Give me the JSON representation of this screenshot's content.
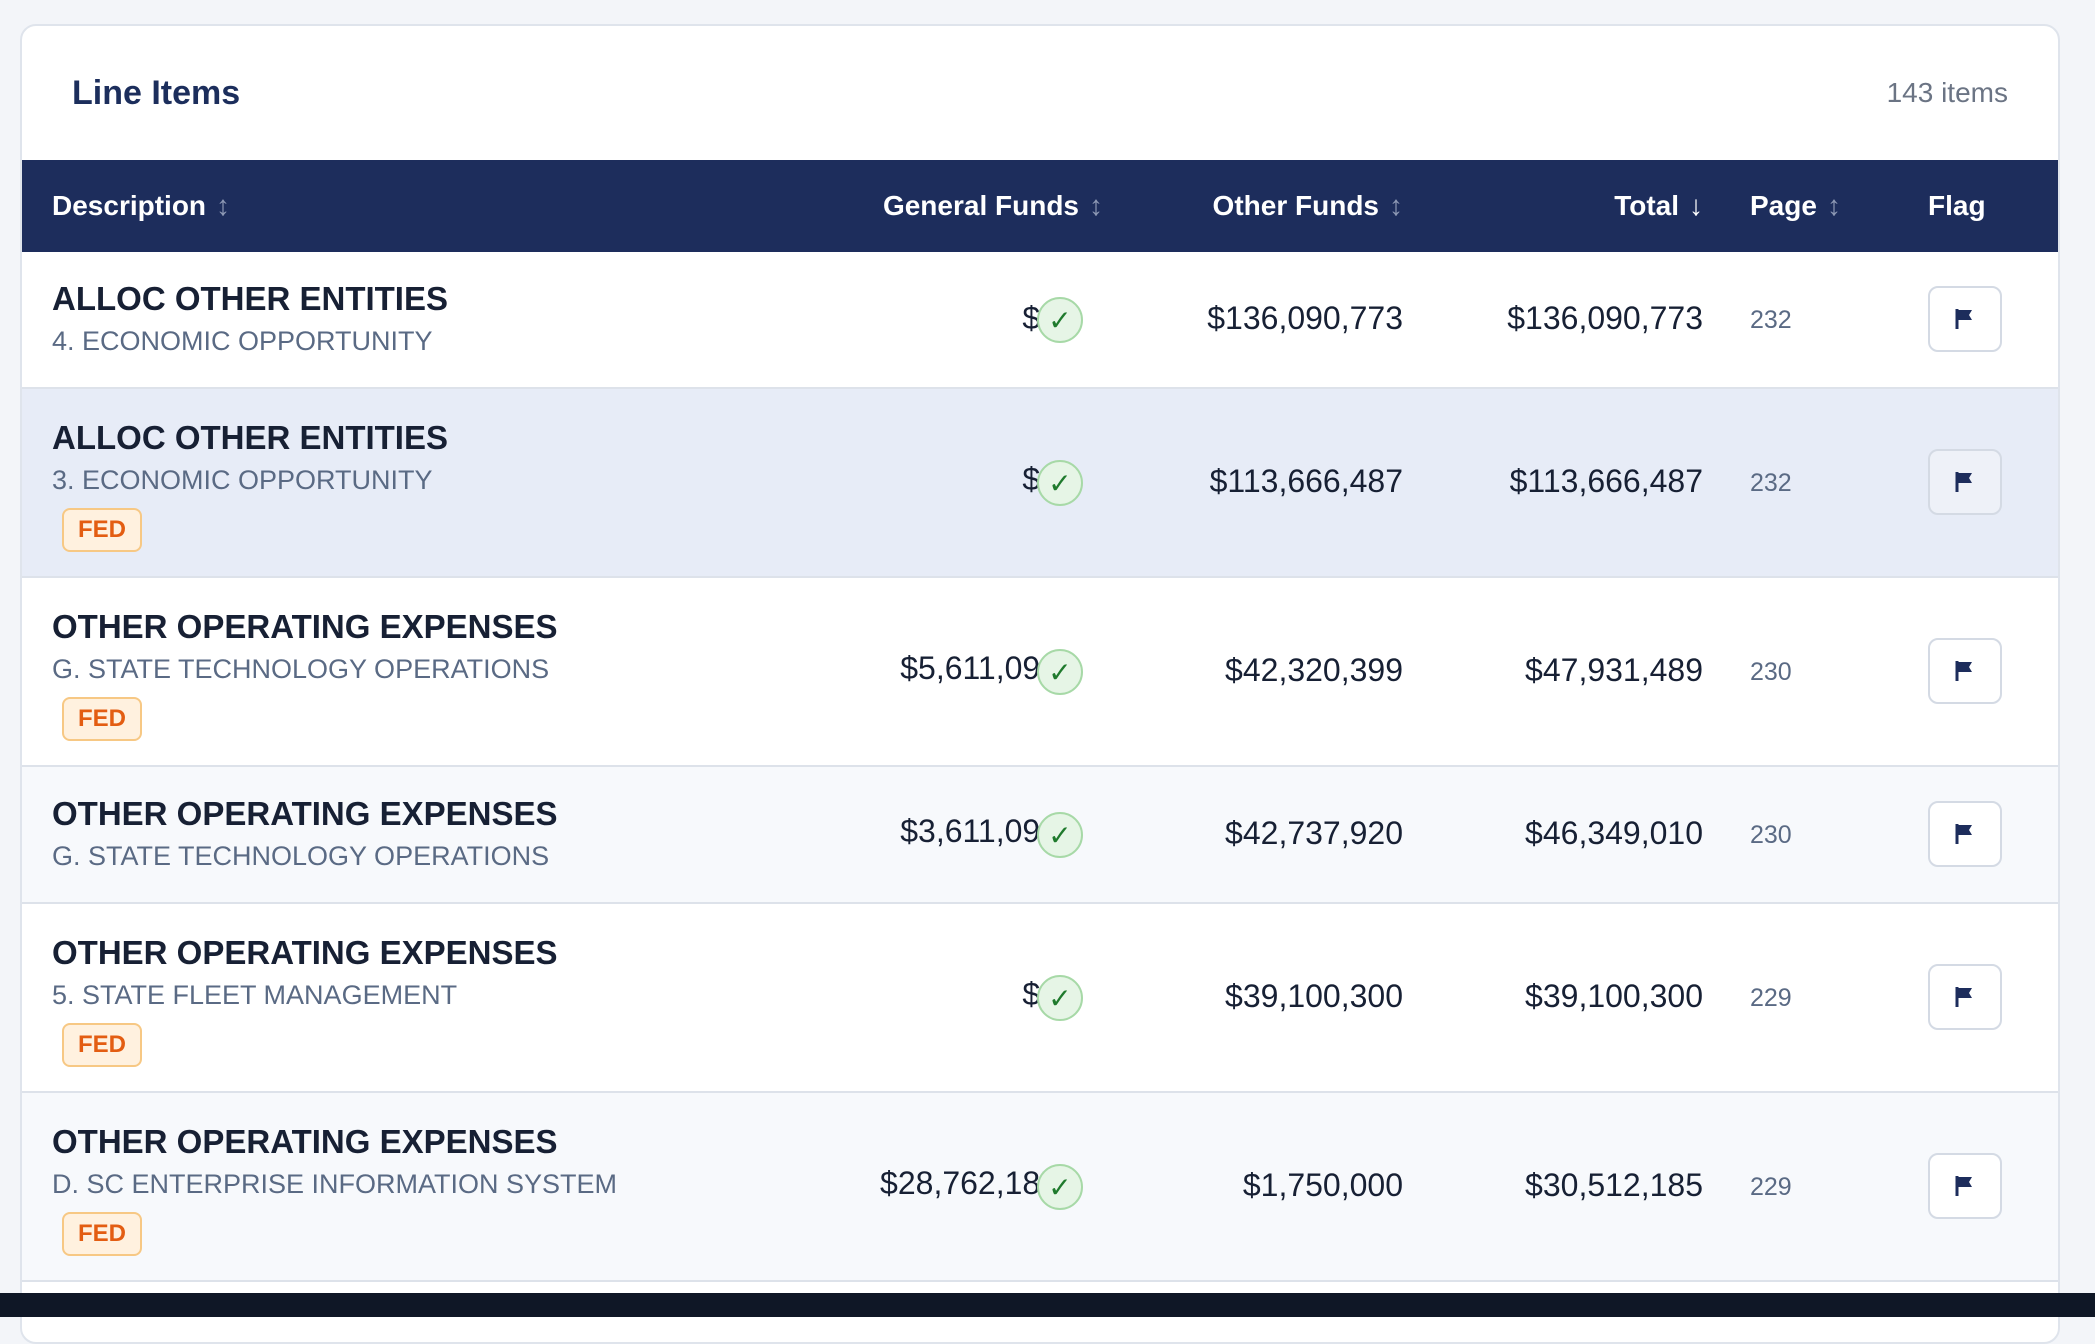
{
  "panel": {
    "title": "Line Items",
    "count_label": "143 items"
  },
  "table": {
    "columns": [
      {
        "label": "Description",
        "sort": "↕"
      },
      {
        "label": "General Funds",
        "sort": "↕"
      },
      {
        "label": "Other Funds",
        "sort": "↕"
      },
      {
        "label": "Total",
        "sort": "↓"
      },
      {
        "label": "Page",
        "sort": "↕"
      },
      {
        "label": "Flag",
        "sort": ""
      }
    ],
    "rows": [
      {
        "title": "ALLOC OTHER ENTITIES",
        "subtitle": "4. ECONOMIC OPPORTUNITY",
        "badge": "",
        "general": "$0",
        "check": "✓",
        "other": "$136,090,773",
        "total": "$136,090,773",
        "page": "232"
      },
      {
        "title": "ALLOC OTHER ENTITIES",
        "subtitle": "3. ECONOMIC OPPORTUNITY",
        "badge": "FED",
        "general": "$0",
        "check": "✓",
        "other": "$113,666,487",
        "total": "$113,666,487",
        "page": "232"
      },
      {
        "title": "OTHER OPERATING EXPENSES",
        "subtitle": "G. STATE TECHNOLOGY OPERATIONS",
        "badge": "FED",
        "general": "$5,611,090",
        "check": "✓",
        "other": "$42,320,399",
        "total": "$47,931,489",
        "page": "230"
      },
      {
        "title": "OTHER OPERATING EXPENSES",
        "subtitle": "G. STATE TECHNOLOGY OPERATIONS",
        "badge": "",
        "general": "$3,611,090",
        "check": "✓",
        "other": "$42,737,920",
        "total": "$46,349,010",
        "page": "230"
      },
      {
        "title": "OTHER OPERATING EXPENSES",
        "subtitle": "5. STATE FLEET MANAGEMENT",
        "badge": "FED",
        "general": "$0",
        "check": "✓",
        "other": "$39,100,300",
        "total": "$39,100,300",
        "page": "229"
      },
      {
        "title": "OTHER OPERATING EXPENSES",
        "subtitle": "D. SC ENTERPRISE INFORMATION SYSTEM",
        "badge": "FED",
        "general": "$28,762,185",
        "check": "✓",
        "other": "$1,750,000",
        "total": "$30,512,185",
        "page": "229"
      }
    ]
  },
  "icons": {
    "flag": "flag-icon",
    "check": "check-icon",
    "sort": "sort-icon"
  },
  "colors": {
    "header_bg": "#1d2d5c",
    "fed_badge_text": "#e35d12",
    "check_green": "#1f7a2d",
    "selected_row": "#e7ecf7"
  }
}
